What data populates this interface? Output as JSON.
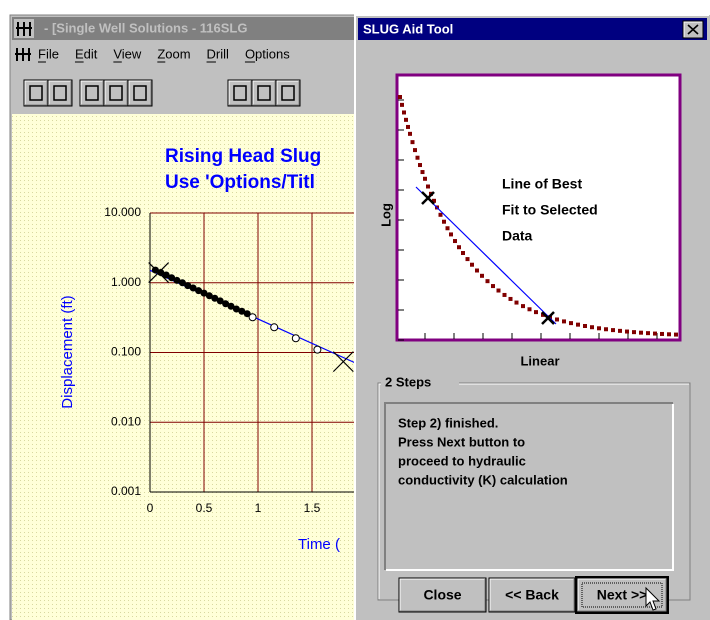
{
  "window": {
    "title": "- [Single Well Solutions - 116SLG",
    "menu": [
      "File",
      "Edit",
      "View",
      "Zoom",
      "Drill",
      "Options"
    ]
  },
  "chart": {
    "type": "scatter",
    "title": [
      "Rising Head Slug",
      "Use 'Options/Titl"
    ],
    "ylabel": "Displacement (ft)",
    "xlabel": "Time (",
    "yscale": "log",
    "xlim": [
      0,
      2.5
    ],
    "ylim": [
      0.001,
      10
    ],
    "xticks": [
      0,
      0.5,
      1,
      1.5
    ],
    "yticks": [
      {
        "value": 0.001,
        "label": "0.001"
      },
      {
        "value": 0.01,
        "label": "0.010"
      },
      {
        "value": 0.1,
        "label": "0.100"
      },
      {
        "value": 1,
        "label": "1.000"
      },
      {
        "value": 10,
        "label": "10.000"
      }
    ],
    "grid": true,
    "grid_color": "#800000",
    "series": [
      {
        "style": "dot",
        "color": "#000000",
        "x": [
          0.05,
          0.1,
          0.15,
          0.2,
          0.25,
          0.3,
          0.35,
          0.4,
          0.45,
          0.5,
          0.55,
          0.6,
          0.65,
          0.7,
          0.75,
          0.8,
          0.85,
          0.9
        ],
        "y": [
          1.52,
          1.4,
          1.29,
          1.18,
          1.08,
          1.0,
          0.91,
          0.84,
          0.77,
          0.71,
          0.65,
          0.6,
          0.55,
          0.5,
          0.46,
          0.42,
          0.39,
          0.36
        ]
      },
      {
        "style": "circle",
        "color": "#000000",
        "x": [
          0.95,
          1.15,
          1.35,
          1.55
        ],
        "y": [
          0.32,
          0.23,
          0.16,
          0.11
        ]
      },
      {
        "style": "line",
        "color": "#0000ff",
        "x": [
          0,
          1.9
        ],
        "y": [
          1.51,
          0.071
        ]
      },
      {
        "style": "cross",
        "color": "#000000",
        "x": [
          0.08,
          1.79
        ],
        "y": [
          1.4,
          0.074
        ]
      }
    ]
  },
  "dialog": {
    "title": "SLUG Aid Tool",
    "diagram": {
      "text": [
        "Line of Best",
        "Fit to Selected",
        "Data"
      ],
      "ylabel": "Log",
      "xlabel": "Linear"
    },
    "group": {
      "label": "2 Steps",
      "message": [
        "Step 2) finished.",
        "Press Next button to",
        "proceed to hydraulic",
        "conductivity (K) calculation"
      ]
    },
    "buttons": [
      "Close",
      "<< Back",
      "Next >>"
    ]
  }
}
